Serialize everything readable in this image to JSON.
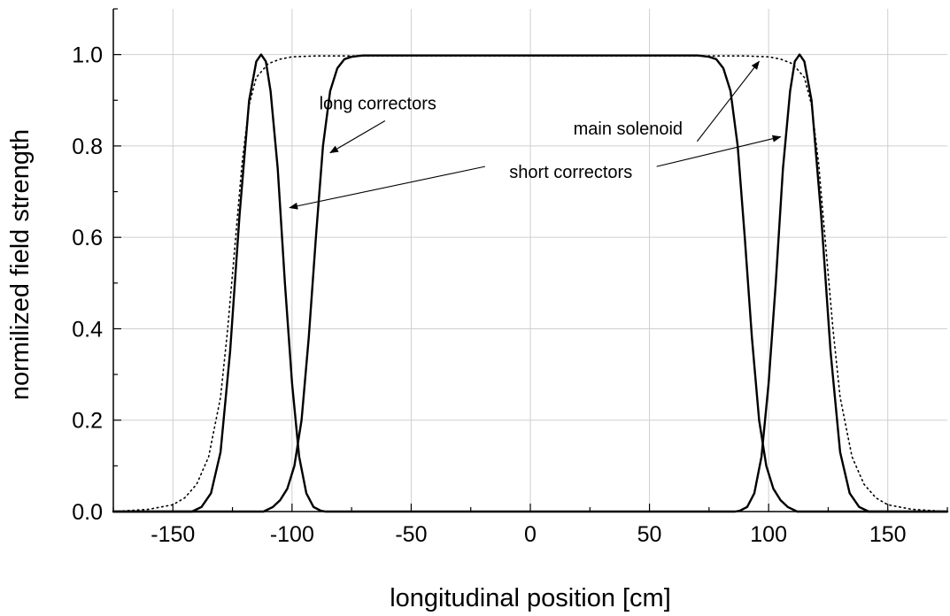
{
  "chart_data": {
    "type": "line",
    "xlabel": "longitudinal position  [cm]",
    "ylabel": "normilized field strength",
    "xlim": [
      -175,
      175
    ],
    "ylim": [
      0,
      1.1
    ],
    "x_ticks": [
      -150,
      -100,
      -50,
      0,
      50,
      100,
      150
    ],
    "x_tick_labels": [
      "-150",
      "-100",
      "-50",
      "0",
      "50",
      "100",
      "150"
    ],
    "y_ticks": [
      0,
      0.2,
      0.4,
      0.6,
      0.8,
      1.0
    ],
    "y_tick_labels": [
      "0.0",
      "0.2",
      "0.4",
      "0.6",
      "0.8",
      "1.0"
    ],
    "grid": true,
    "series": [
      {
        "name": "main solenoid",
        "style": "dotted",
        "color": "#000000",
        "x": [
          -175,
          -160,
          -150,
          -145,
          -140,
          -135,
          -130,
          -127,
          -124,
          -121,
          -118,
          -115,
          -110,
          -105,
          -100,
          -90,
          0,
          90,
          100,
          105,
          110,
          115,
          118,
          121,
          124,
          127,
          130,
          135,
          140,
          145,
          150,
          160,
          175
        ],
        "y": [
          0.0,
          0.005,
          0.015,
          0.03,
          0.06,
          0.12,
          0.25,
          0.4,
          0.58,
          0.76,
          0.89,
          0.95,
          0.98,
          0.99,
          0.995,
          0.997,
          0.997,
          0.997,
          0.995,
          0.99,
          0.98,
          0.95,
          0.89,
          0.76,
          0.58,
          0.4,
          0.25,
          0.12,
          0.06,
          0.03,
          0.015,
          0.005,
          0.0
        ]
      },
      {
        "name": "long correctors",
        "style": "solid",
        "color": "#000000",
        "x": [
          -175,
          -112,
          -108,
          -105,
          -102,
          -99,
          -96,
          -93,
          -90,
          -87,
          -84,
          -81,
          -78,
          -75,
          -72,
          -70,
          0,
          70,
          72,
          75,
          78,
          81,
          84,
          87,
          90,
          93,
          96,
          99,
          102,
          105,
          108,
          112,
          175
        ],
        "y": [
          0.0,
          0.0,
          0.01,
          0.025,
          0.05,
          0.1,
          0.2,
          0.38,
          0.6,
          0.8,
          0.92,
          0.97,
          0.99,
          0.995,
          0.997,
          0.998,
          0.998,
          0.998,
          0.997,
          0.995,
          0.99,
          0.97,
          0.92,
          0.8,
          0.6,
          0.38,
          0.2,
          0.1,
          0.05,
          0.025,
          0.01,
          0.0,
          0.0
        ]
      },
      {
        "name": "short correctors",
        "style": "solid",
        "color": "#000000",
        "x": [
          -175,
          -142,
          -138,
          -134,
          -130,
          -126,
          -122,
          -118,
          -115,
          -113,
          -111,
          -109,
          -106,
          -103,
          -100,
          -97,
          -94,
          -91,
          -88,
          -86,
          86,
          88,
          91,
          94,
          97,
          100,
          103,
          106,
          109,
          111,
          113,
          115,
          118,
          122,
          126,
          130,
          134,
          138,
          142,
          175
        ],
        "y": [
          0.0,
          0.0,
          0.01,
          0.04,
          0.13,
          0.35,
          0.65,
          0.9,
          0.985,
          1.0,
          0.985,
          0.92,
          0.75,
          0.5,
          0.28,
          0.12,
          0.04,
          0.01,
          0.002,
          0.0,
          0.0,
          0.002,
          0.01,
          0.04,
          0.12,
          0.28,
          0.5,
          0.75,
          0.92,
          0.985,
          1.0,
          0.985,
          0.9,
          0.65,
          0.35,
          0.13,
          0.04,
          0.01,
          0.0,
          0.0
        ]
      }
    ],
    "annotations": [
      {
        "text": "long correctors",
        "x": -64,
        "y": 0.88
      },
      {
        "text": "main solenoid",
        "x": 41,
        "y": 0.825
      },
      {
        "text": "short correctors",
        "x": 17,
        "y": 0.73
      }
    ],
    "arrows": [
      {
        "name": "long-correctors-arrow",
        "from": [
          -61,
          0.855
        ],
        "to": [
          -84,
          0.785
        ]
      },
      {
        "name": "main-solenoid-arrow",
        "from": [
          70,
          0.81
        ],
        "to": [
          96,
          0.985
        ]
      },
      {
        "name": "short-correctors-left-arrow",
        "from": [
          -19,
          0.755
        ],
        "to": [
          -101,
          0.665
        ]
      },
      {
        "name": "short-correctors-right-arrow",
        "from": [
          53,
          0.755
        ],
        "to": [
          105,
          0.82
        ]
      }
    ]
  }
}
